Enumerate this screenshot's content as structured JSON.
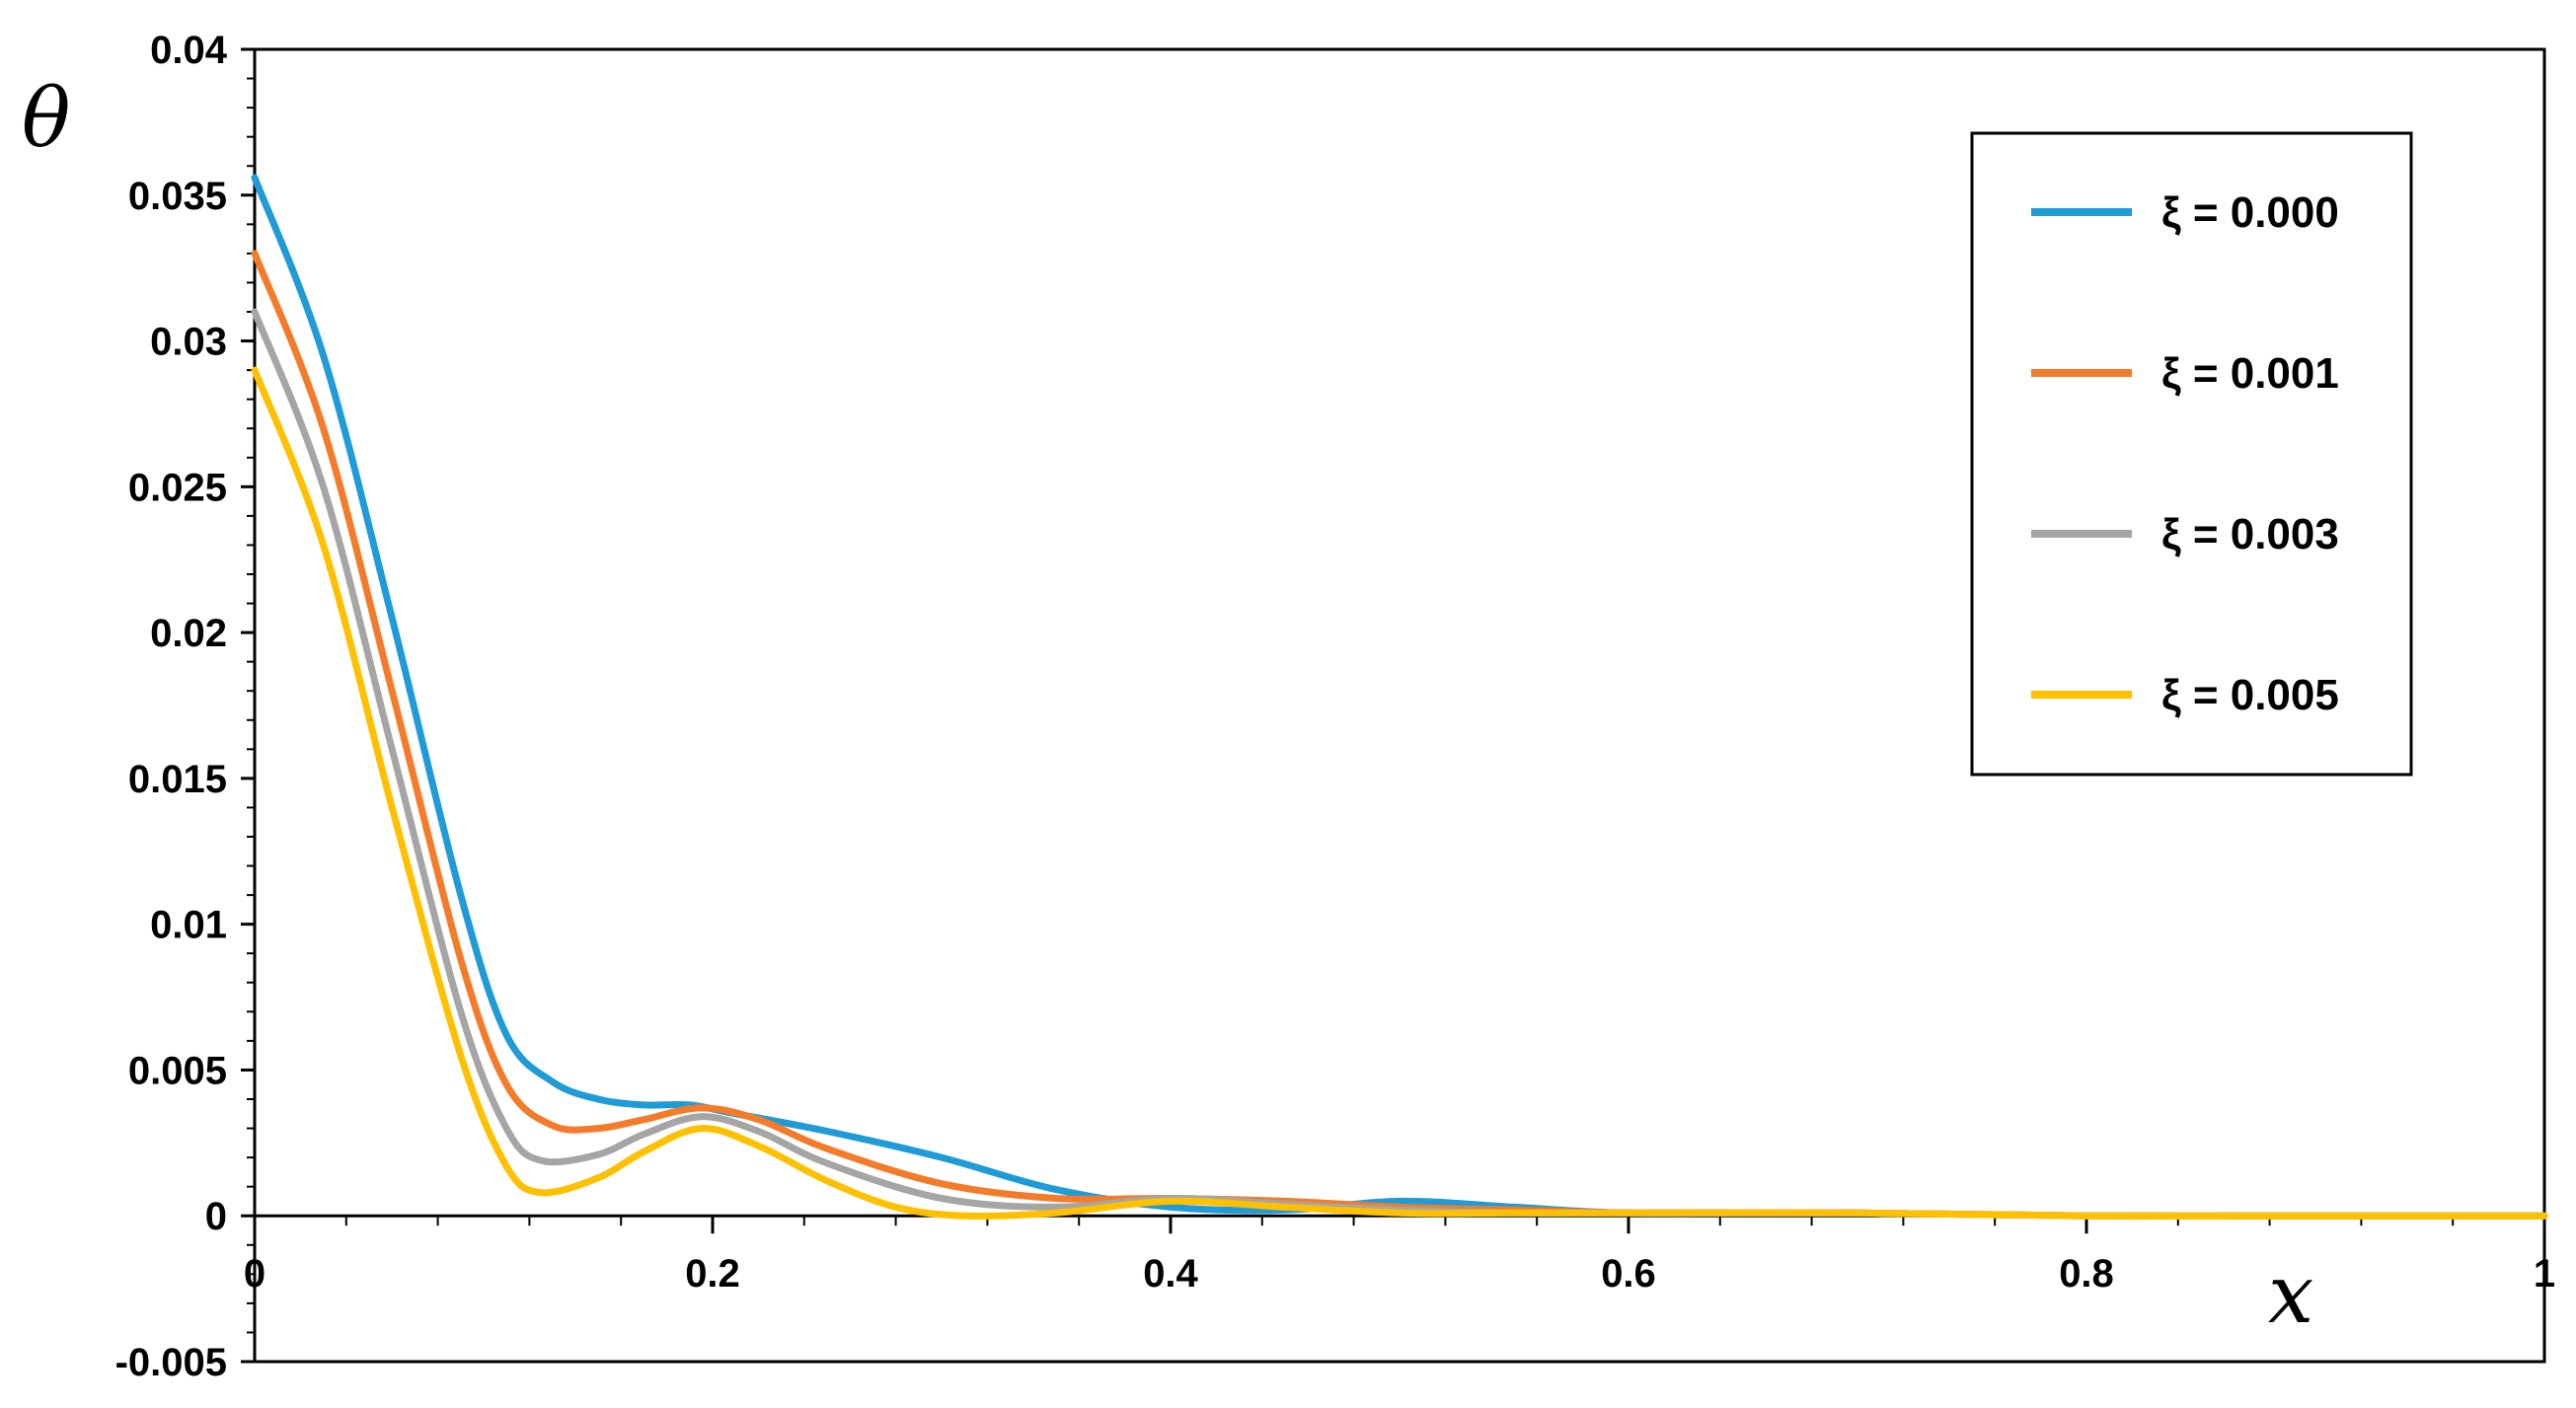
{
  "chart_data": {
    "type": "line",
    "title": "",
    "xlabel": "x",
    "ylabel": "θ",
    "xlim": [
      0,
      1
    ],
    "ylim": [
      -0.005,
      0.04
    ],
    "grid": false,
    "legend_position": "top-right",
    "x_ticks": [
      "0",
      "0.2",
      "0.4",
      "0.6",
      "0.8",
      "1"
    ],
    "y_ticks": [
      "-0.005",
      "0",
      "0.005",
      "0.01",
      "0.015",
      "0.02",
      "0.025",
      "0.03",
      "0.035",
      "0.04"
    ],
    "series": [
      {
        "name": "ξ = 0.000",
        "color": "#1f9bd7",
        "points": [
          [
            0,
            0.0356
          ],
          [
            0.03,
            0.0295
          ],
          [
            0.06,
            0.0205
          ],
          [
            0.09,
            0.011
          ],
          [
            0.11,
            0.0062
          ],
          [
            0.13,
            0.0046
          ],
          [
            0.15,
            0.004
          ],
          [
            0.17,
            0.0038
          ],
          [
            0.19,
            0.0038
          ],
          [
            0.21,
            0.0035
          ],
          [
            0.25,
            0.0029
          ],
          [
            0.3,
            0.002
          ],
          [
            0.35,
            0.0009
          ],
          [
            0.4,
            0.0003
          ],
          [
            0.45,
            0.0002
          ],
          [
            0.5,
            0.0005
          ],
          [
            0.55,
            0.0003
          ],
          [
            0.6,
            0.0001
          ],
          [
            0.7,
            0.0001
          ],
          [
            0.8,
            0
          ],
          [
            0.9,
            0
          ],
          [
            1.0,
            0
          ]
        ]
      },
      {
        "name": "ξ = 0.001",
        "color": "#f47b2a",
        "points": [
          [
            0,
            0.033
          ],
          [
            0.03,
            0.027
          ],
          [
            0.06,
            0.018
          ],
          [
            0.09,
            0.0088
          ],
          [
            0.11,
            0.0045
          ],
          [
            0.13,
            0.0031
          ],
          [
            0.15,
            0.003
          ],
          [
            0.17,
            0.0033
          ],
          [
            0.195,
            0.0037
          ],
          [
            0.22,
            0.0033
          ],
          [
            0.25,
            0.0023
          ],
          [
            0.3,
            0.0011
          ],
          [
            0.35,
            0.0006
          ],
          [
            0.4,
            0.0006
          ],
          [
            0.45,
            0.0005
          ],
          [
            0.5,
            0.0003
          ],
          [
            0.55,
            0.0002
          ],
          [
            0.6,
            0.0001
          ],
          [
            0.7,
            0.0001
          ],
          [
            0.8,
            0
          ],
          [
            0.9,
            0
          ],
          [
            1.0,
            0
          ]
        ]
      },
      {
        "name": "ξ = 0.003",
        "color": "#a5a5a5",
        "points": [
          [
            0,
            0.031
          ],
          [
            0.03,
            0.025
          ],
          [
            0.06,
            0.016
          ],
          [
            0.09,
            0.007
          ],
          [
            0.11,
            0.003
          ],
          [
            0.125,
            0.0019
          ],
          [
            0.15,
            0.0021
          ],
          [
            0.17,
            0.0028
          ],
          [
            0.195,
            0.0034
          ],
          [
            0.22,
            0.0029
          ],
          [
            0.25,
            0.0018
          ],
          [
            0.3,
            0.0006
          ],
          [
            0.35,
            0.0003
          ],
          [
            0.4,
            0.0006
          ],
          [
            0.45,
            0.0004
          ],
          [
            0.5,
            0.0002
          ],
          [
            0.55,
            0.0001
          ],
          [
            0.6,
            0.0001
          ],
          [
            0.7,
            0.0001
          ],
          [
            0.8,
            0
          ],
          [
            0.9,
            0
          ],
          [
            1.0,
            0
          ]
        ]
      },
      {
        "name": "ξ = 0.005",
        "color": "#ffc000",
        "points": [
          [
            0,
            0.029
          ],
          [
            0.03,
            0.023
          ],
          [
            0.06,
            0.014
          ],
          [
            0.09,
            0.0055
          ],
          [
            0.11,
            0.0017
          ],
          [
            0.125,
            0.0008
          ],
          [
            0.15,
            0.0013
          ],
          [
            0.17,
            0.0022
          ],
          [
            0.195,
            0.003
          ],
          [
            0.22,
            0.0024
          ],
          [
            0.25,
            0.0012
          ],
          [
            0.28,
            0.0003
          ],
          [
            0.31,
            0
          ],
          [
            0.35,
            0.0001
          ],
          [
            0.4,
            0.0005
          ],
          [
            0.45,
            0.0003
          ],
          [
            0.5,
            0.0001
          ],
          [
            0.55,
            0.0001
          ],
          [
            0.6,
            0.0001
          ],
          [
            0.7,
            0.0001
          ],
          [
            0.8,
            0
          ],
          [
            0.9,
            0
          ],
          [
            1.0,
            0
          ]
        ]
      }
    ]
  }
}
